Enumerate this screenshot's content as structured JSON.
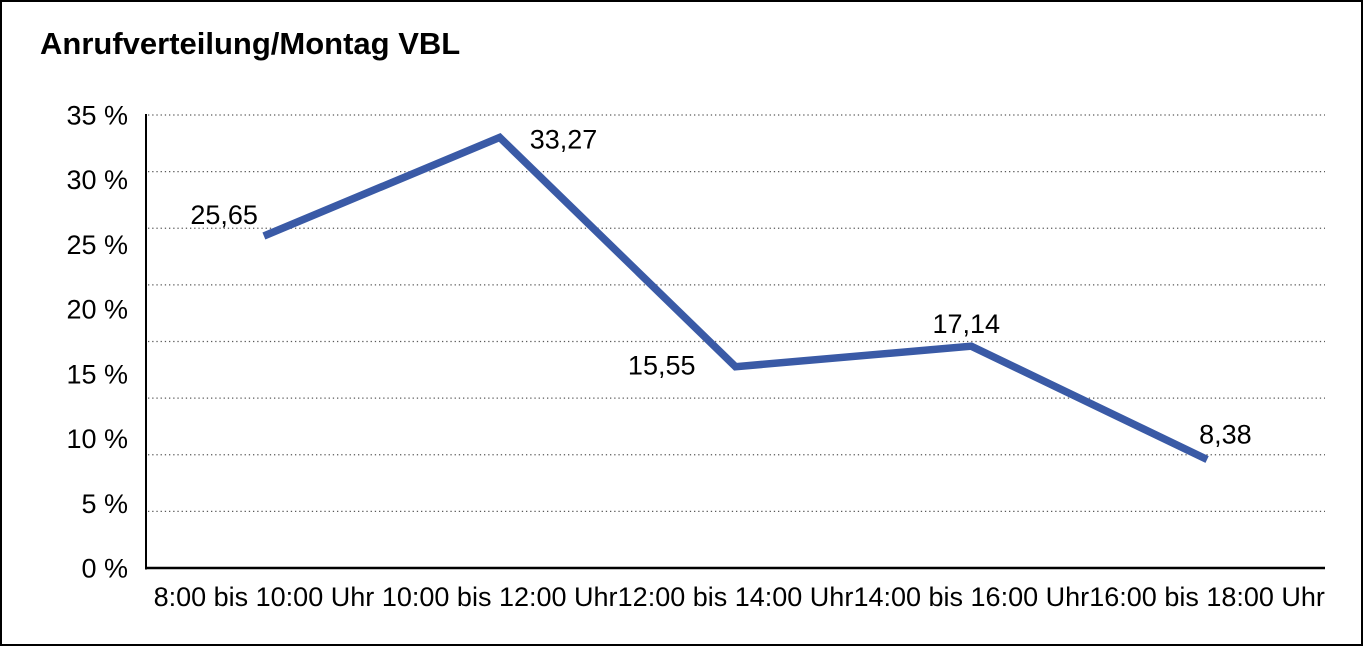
{
  "window": {
    "title": "Anrufverteilung/Montag VBL"
  },
  "chart_data": {
    "type": "line",
    "title": "Anrufverteilung/Montag VBL",
    "categories": [
      "8:00 bis 10:00 Uhr",
      "10:00 bis 12:00 Uhr",
      "12:00 bis 14:00 Uhr",
      "14:00 bis 16:00 Uhr",
      "16:00 bis 18:00 Uhr"
    ],
    "values": [
      25.65,
      33.27,
      15.55,
      17.14,
      8.38
    ],
    "point_labels": [
      "25,65",
      "33,27",
      "15,55",
      "17,14",
      "8,38"
    ],
    "y_tick_labels": [
      "35 %",
      "30 %",
      "25 %",
      "20 %",
      "15 %",
      "10 %",
      "5 %",
      "0 %"
    ],
    "y_tick_values": [
      35,
      30,
      25,
      20,
      15,
      10,
      5,
      0
    ],
    "ylim": [
      0,
      35
    ],
    "y_tick_step": 5,
    "xlabel": "",
    "ylabel": "",
    "legend": "none",
    "grid": "horizontal-dotted",
    "grid_divisions": 8,
    "colors": {
      "line": "#3A5AA6",
      "grid": "#5a5a5a",
      "axis": "#000000",
      "text": "#000000",
      "background": "#FFFFFF",
      "frame": "#000000"
    }
  }
}
